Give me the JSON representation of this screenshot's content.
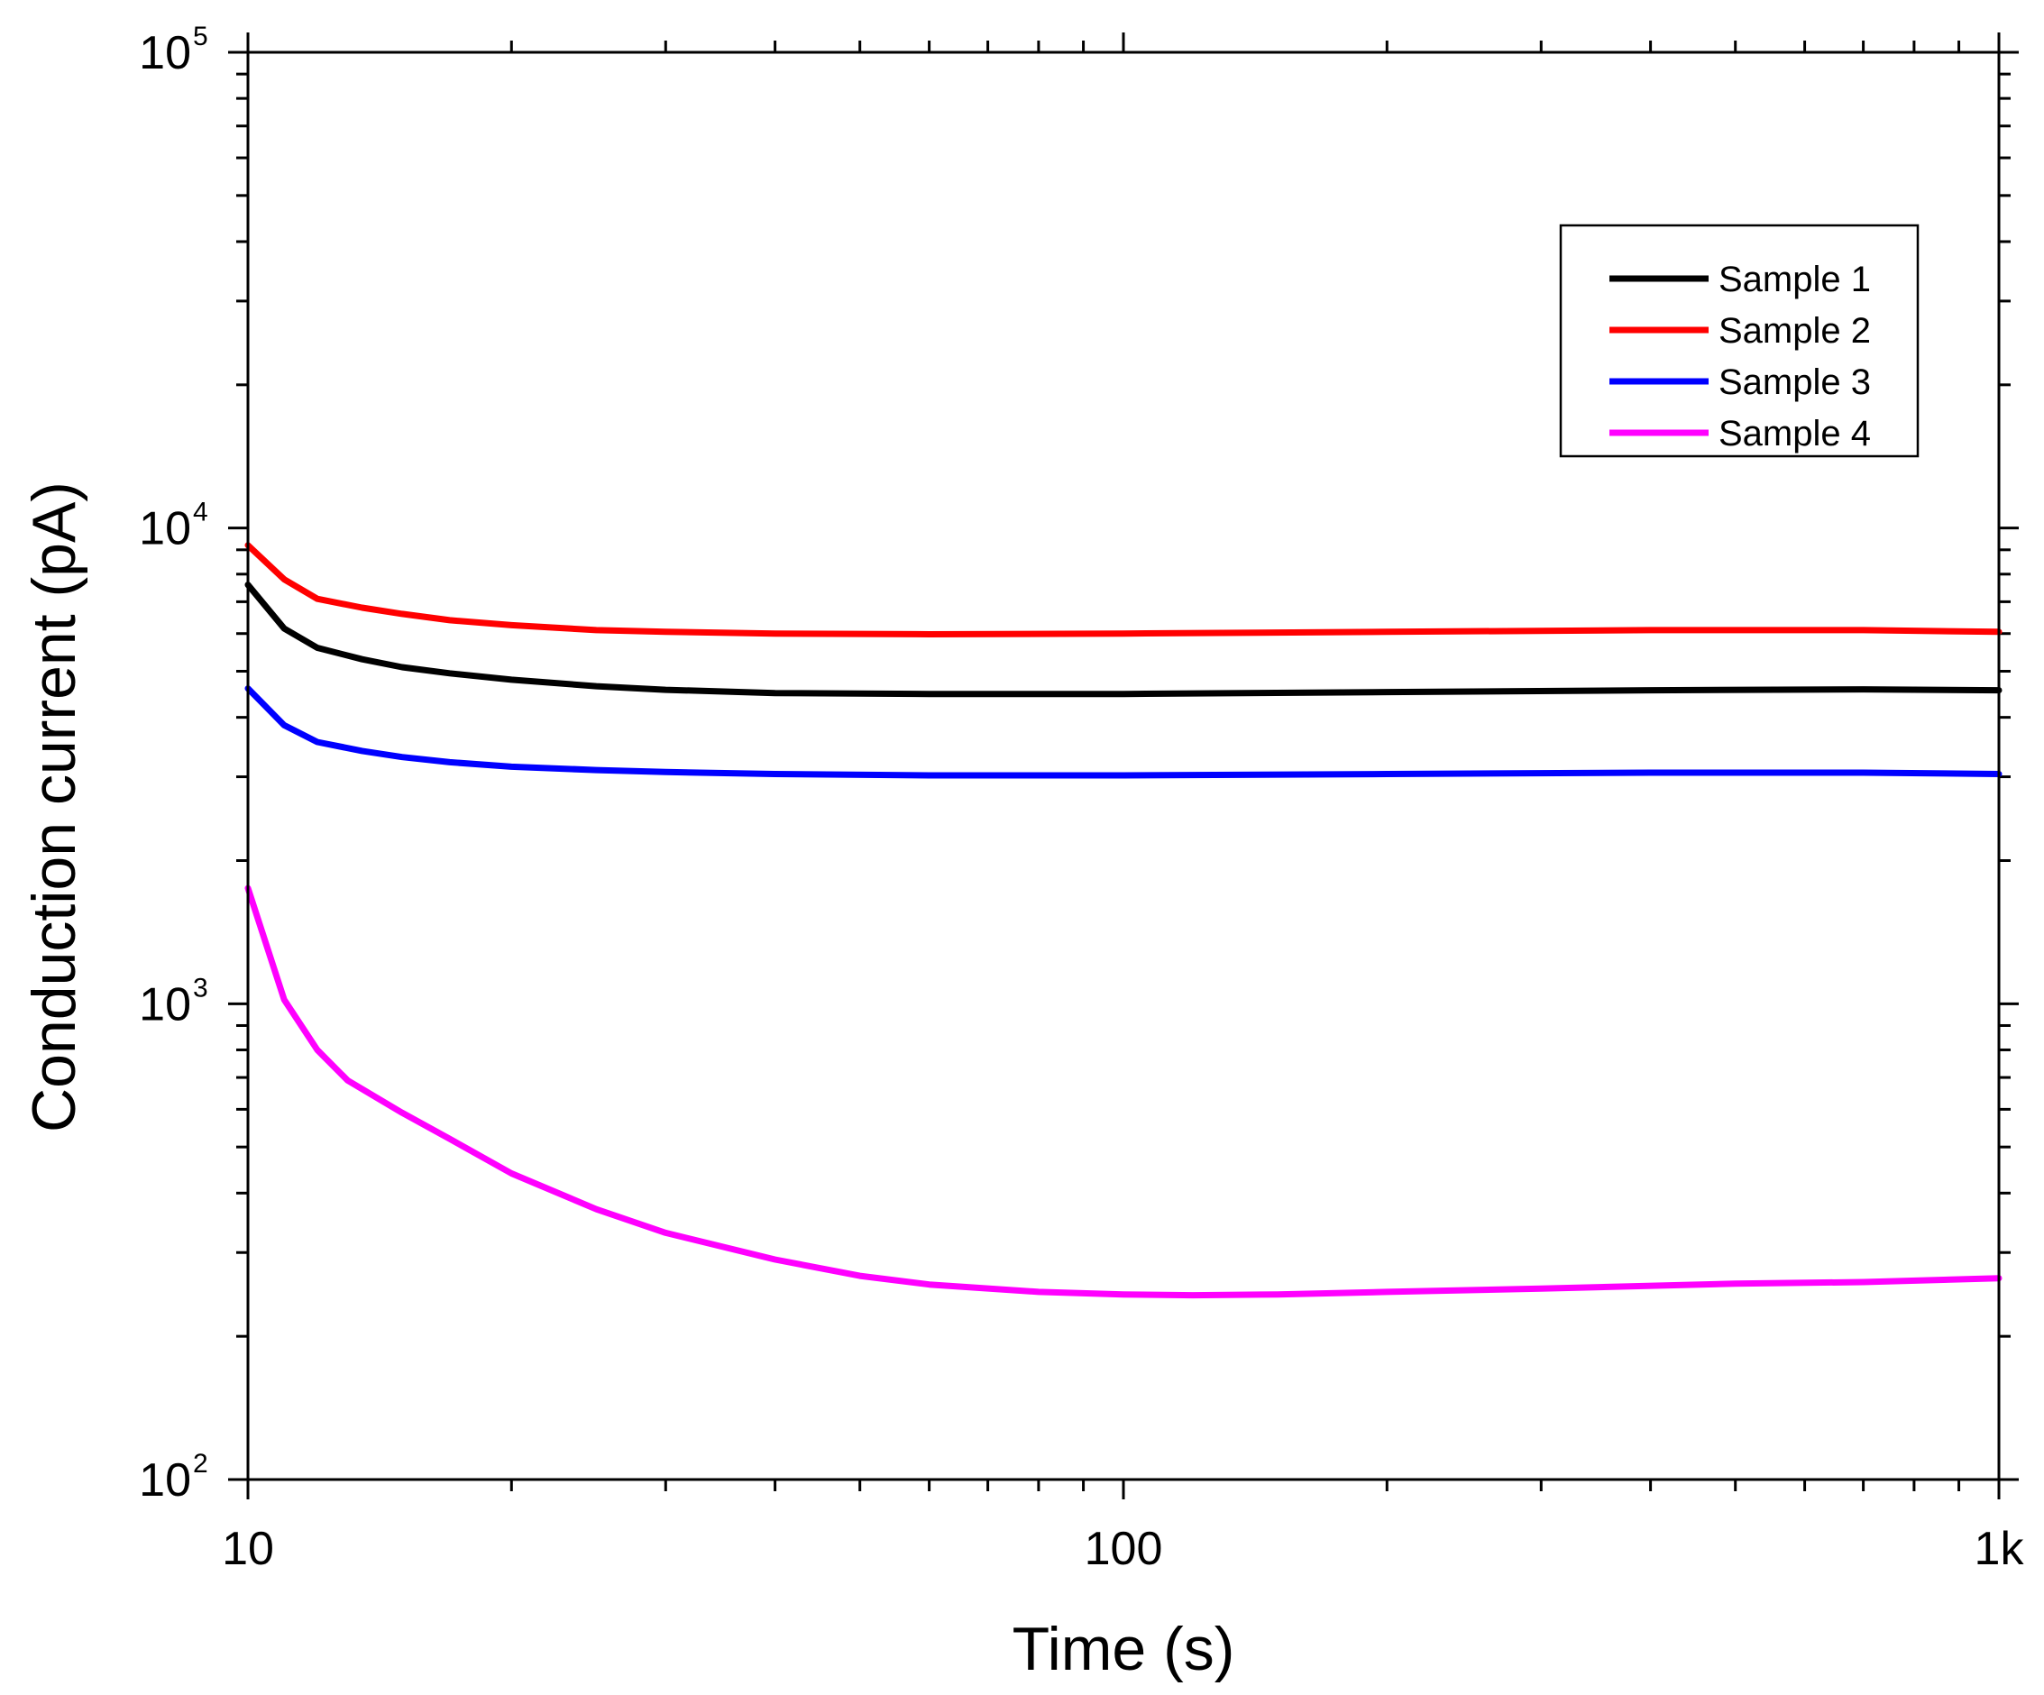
{
  "chart_data": {
    "type": "line",
    "xlabel": "Time (s)",
    "ylabel": "Conduction current (pA)",
    "x_scale": "log",
    "y_scale": "log",
    "xlim": [
      10,
      1000
    ],
    "ylim": [
      100,
      100000
    ],
    "x_ticks": [
      {
        "value": 10,
        "label": "10"
      },
      {
        "value": 100,
        "label": "100"
      },
      {
        "value": 1000,
        "label": "1k"
      }
    ],
    "y_ticks": [
      {
        "value": 100,
        "base": "10",
        "exp": "2"
      },
      {
        "value": 1000,
        "base": "10",
        "exp": "3"
      },
      {
        "value": 10000,
        "base": "10",
        "exp": "4"
      },
      {
        "value": 100000,
        "base": "10",
        "exp": "5"
      }
    ],
    "legend_position": "top-right",
    "series": [
      {
        "name": "Sample 1",
        "color": "#000000",
        "x": [
          10,
          11,
          12,
          13.5,
          15,
          17,
          20,
          25,
          30,
          40,
          60,
          100,
          200,
          400,
          700,
          1000
        ],
        "y": [
          7600,
          6150,
          5600,
          5300,
          5100,
          4950,
          4800,
          4650,
          4570,
          4500,
          4480,
          4480,
          4520,
          4560,
          4580,
          4560
        ]
      },
      {
        "name": "Sample 2",
        "color": "#ff0000",
        "x": [
          10,
          11,
          12,
          13.5,
          15,
          17,
          20,
          25,
          30,
          40,
          60,
          100,
          200,
          400,
          700,
          1000
        ],
        "y": [
          9200,
          7800,
          7100,
          6800,
          6600,
          6400,
          6250,
          6100,
          6050,
          6000,
          5980,
          6000,
          6050,
          6100,
          6100,
          6050
        ]
      },
      {
        "name": "Sample 3",
        "color": "#0000ff",
        "x": [
          10,
          11,
          12,
          13.5,
          15,
          17,
          20,
          25,
          30,
          40,
          60,
          100,
          200,
          400,
          700,
          1000
        ],
        "y": [
          4600,
          3850,
          3550,
          3400,
          3300,
          3220,
          3150,
          3100,
          3070,
          3040,
          3020,
          3020,
          3040,
          3060,
          3060,
          3040
        ]
      },
      {
        "name": "Sample 4",
        "color": "#ff00ff",
        "x": [
          10,
          11,
          12,
          13,
          15,
          17,
          20,
          25,
          30,
          40,
          50,
          60,
          80,
          100,
          120,
          150,
          200,
          300,
          500,
          700,
          1000
        ],
        "y": [
          1750,
          1020,
          800,
          690,
          590,
          520,
          440,
          370,
          330,
          290,
          268,
          257,
          248,
          245,
          244,
          245,
          248,
          252,
          258,
          260,
          265
        ]
      }
    ]
  }
}
